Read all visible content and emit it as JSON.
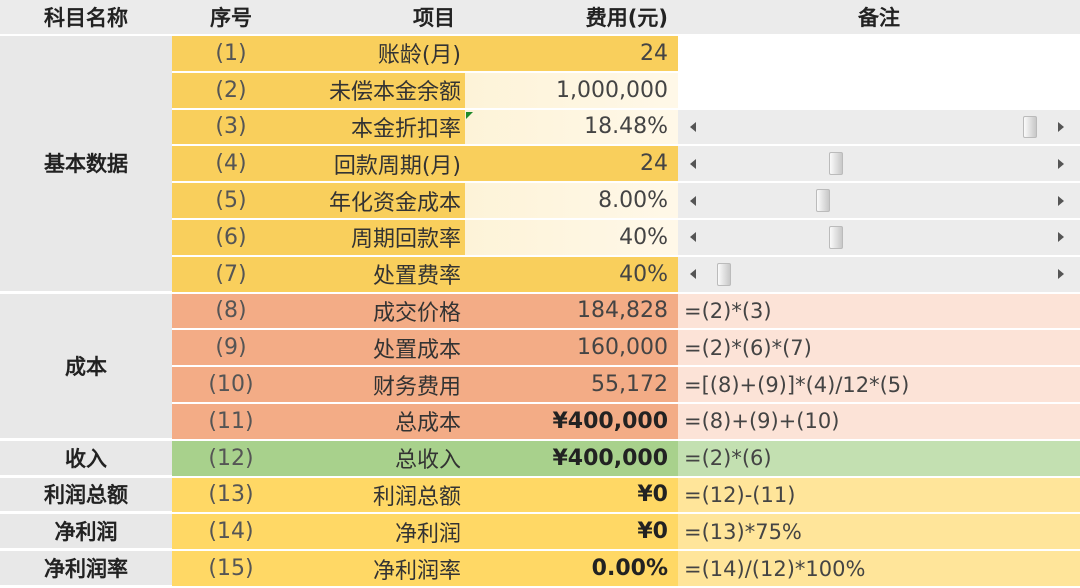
{
  "headers": {
    "subject": "科目名称",
    "seq": "序号",
    "item": "项目",
    "cost": "费用(元)",
    "note": "备注"
  },
  "sections": [
    {
      "label": "基本数据",
      "rows": 7
    },
    {
      "label": "成本",
      "rows": 4
    },
    {
      "label": "收入",
      "rows": 1
    },
    {
      "label": "利润总额",
      "rows": 1
    },
    {
      "label": "净利润",
      "rows": 1
    },
    {
      "label": "净利润率",
      "rows": 1
    }
  ],
  "rows": [
    {
      "seq": "(1)",
      "item": "账龄(月)",
      "value": "24",
      "note": "",
      "type": "base"
    },
    {
      "seq": "(2)",
      "item": "未偿本金余额",
      "value": "1,000,000",
      "note": "",
      "type": "base",
      "input": true
    },
    {
      "seq": "(3)",
      "item": "本金折扣率",
      "value": "18.48%",
      "note": "",
      "type": "base",
      "input": true,
      "slider": 0.95
    },
    {
      "seq": "(4)",
      "item": "回款周期(月)",
      "value": "24",
      "note": "",
      "type": "base",
      "slider": 0.38
    },
    {
      "seq": "(5)",
      "item": "年化资金成本",
      "value": "8.00%",
      "note": "",
      "type": "base",
      "input": true,
      "slider": 0.34
    },
    {
      "seq": "(6)",
      "item": "周期回款率",
      "value": "40%",
      "note": "",
      "type": "base",
      "input": true,
      "slider": 0.38
    },
    {
      "seq": "(7)",
      "item": "处置费率",
      "value": "40%",
      "note": "",
      "type": "base",
      "slider": 0.05
    },
    {
      "seq": "(8)",
      "item": "成交价格",
      "value": "184,828",
      "note": "=(2)*(3)",
      "type": "cost"
    },
    {
      "seq": "(9)",
      "item": "处置成本",
      "value": "160,000",
      "note": "=(2)*(6)*(7)",
      "type": "cost"
    },
    {
      "seq": "(10)",
      "item": "财务费用",
      "value": "55,172",
      "note": "=[(8)+(9)]*(4)/12*(5)",
      "type": "cost"
    },
    {
      "seq": "(11)",
      "item": "总成本",
      "value": "¥400,000",
      "note": "=(8)+(9)+(10)",
      "type": "cost",
      "bold": true
    },
    {
      "seq": "(12)",
      "item": "总收入",
      "value": "¥400,000",
      "note": "=(2)*(6)",
      "type": "income",
      "bold": true
    },
    {
      "seq": "(13)",
      "item": "利润总额",
      "value": "¥0",
      "note": "=(12)-(11)",
      "type": "profit",
      "bold": true
    },
    {
      "seq": "(14)",
      "item": "净利润",
      "value": "¥0",
      "note": "=(13)*75%",
      "type": "profit",
      "bold": true
    },
    {
      "seq": "(15)",
      "item": "净利润率",
      "value": "0.00%",
      "note": "=(14)/(12)*100%",
      "type": "profit",
      "bold": true
    }
  ],
  "colors": {
    "base": "#f9cf5c",
    "cost": "#f3ac86",
    "income": "#a8d18c",
    "profit": "#ffd865",
    "header": "#ebebeb"
  }
}
